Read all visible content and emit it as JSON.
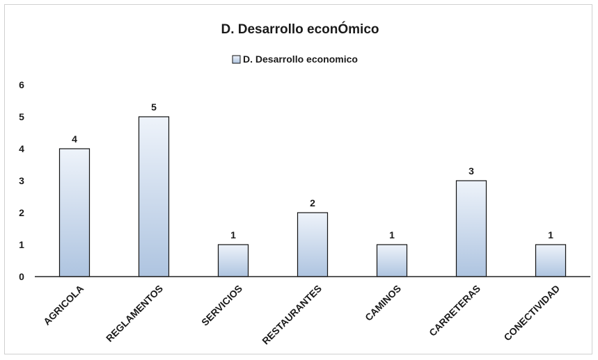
{
  "chart_data": {
    "type": "bar",
    "title": "D. Desarrollo econÓmico",
    "xlabel": "",
    "ylabel": "",
    "categories": [
      "AGRICOLA",
      "REGLAMENTOS",
      "SERVICIOS",
      "RESTAURANTES",
      "CAMINOS",
      "CARRETERAS",
      "CONECTIVIDAD"
    ],
    "series": [
      {
        "name": "D. Desarrollo economico",
        "values": [
          4,
          5,
          1,
          2,
          1,
          3,
          1
        ]
      }
    ],
    "yticks": [
      "0",
      "1",
      "2",
      "3",
      "4",
      "5",
      "6"
    ],
    "ylim": [
      0,
      6
    ],
    "grid": false,
    "legend_position": "top",
    "data_labels": true,
    "colors": {
      "bar_top": "#eef3fa",
      "bar_bottom": "#aec4e0",
      "bar_stroke": "#111111",
      "axis": "#222222"
    }
  }
}
